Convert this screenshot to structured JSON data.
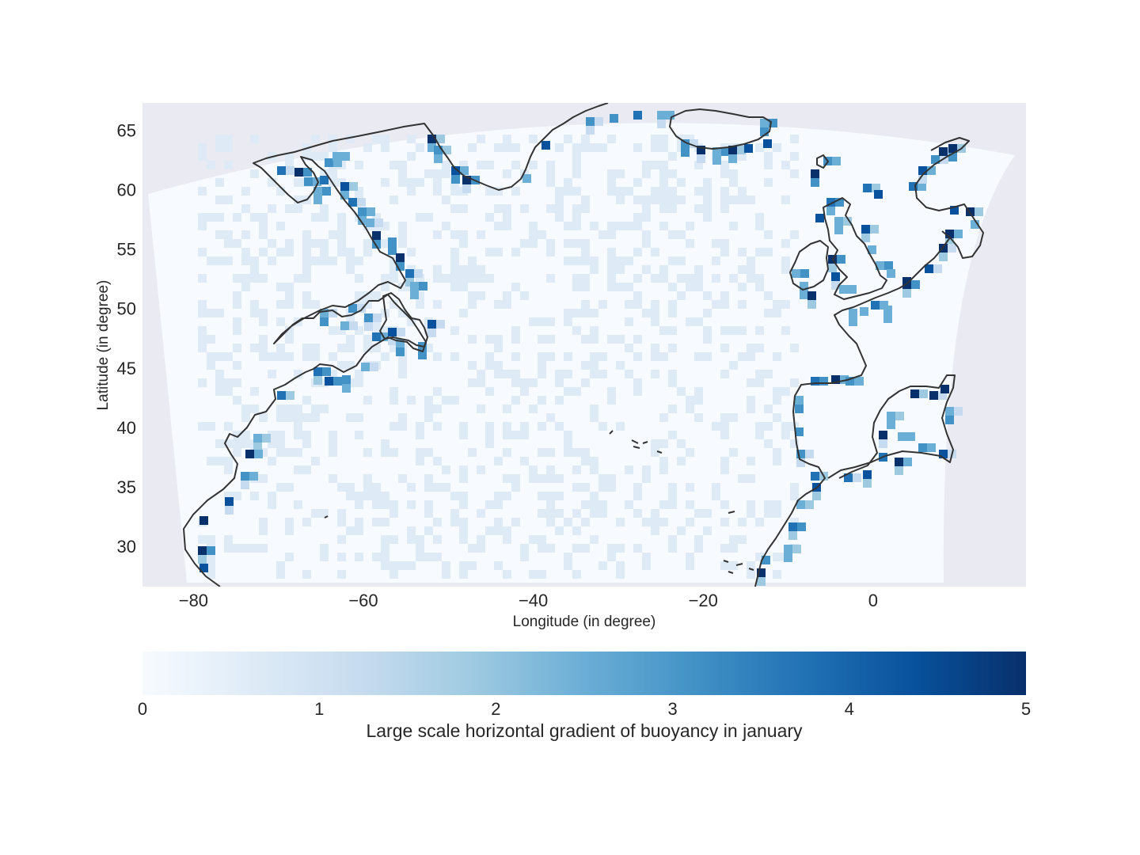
{
  "map": {
    "xlabel": "Longitude (in degree)",
    "ylabel": "Latitude (in degree)",
    "lon_range": [
      -86,
      18
    ],
    "lat_range": [
      26.6,
      67.3
    ],
    "x_ticks": [
      {
        "value": -80,
        "label": "−80"
      },
      {
        "value": -60,
        "label": "−60"
      },
      {
        "value": -40,
        "label": "−40"
      },
      {
        "value": -20,
        "label": "−20"
      },
      {
        "value": 0,
        "label": "0"
      }
    ],
    "y_ticks": [
      {
        "value": 65,
        "label": "65"
      },
      {
        "value": 60,
        "label": "60"
      },
      {
        "value": 55,
        "label": "55"
      },
      {
        "value": 50,
        "label": "50"
      },
      {
        "value": 45,
        "label": "45"
      },
      {
        "value": 40,
        "label": "40"
      },
      {
        "value": 35,
        "label": "35"
      },
      {
        "value": 30,
        "label": "30"
      }
    ],
    "background_color": "#eaeaf2",
    "domain_color": "#f7fbff",
    "coastline_color": "#333333",
    "grid": false
  },
  "colorbar": {
    "label": "Large scale horizontal gradient of buoyancy in january",
    "colormap": "Blues",
    "range": [
      0,
      5
    ],
    "ticks": [
      {
        "value": 0,
        "label": "0"
      },
      {
        "value": 1,
        "label": "1"
      },
      {
        "value": 2,
        "label": "2"
      },
      {
        "value": 3,
        "label": "3"
      },
      {
        "value": 4,
        "label": "4"
      },
      {
        "value": 5,
        "label": "5"
      }
    ],
    "stops": [
      "#f7fbff",
      "#deebf7",
      "#c6dbef",
      "#9ecae1",
      "#6baed6",
      "#4292c6",
      "#2171b5",
      "#08519c",
      "#08306b"
    ]
  }
}
